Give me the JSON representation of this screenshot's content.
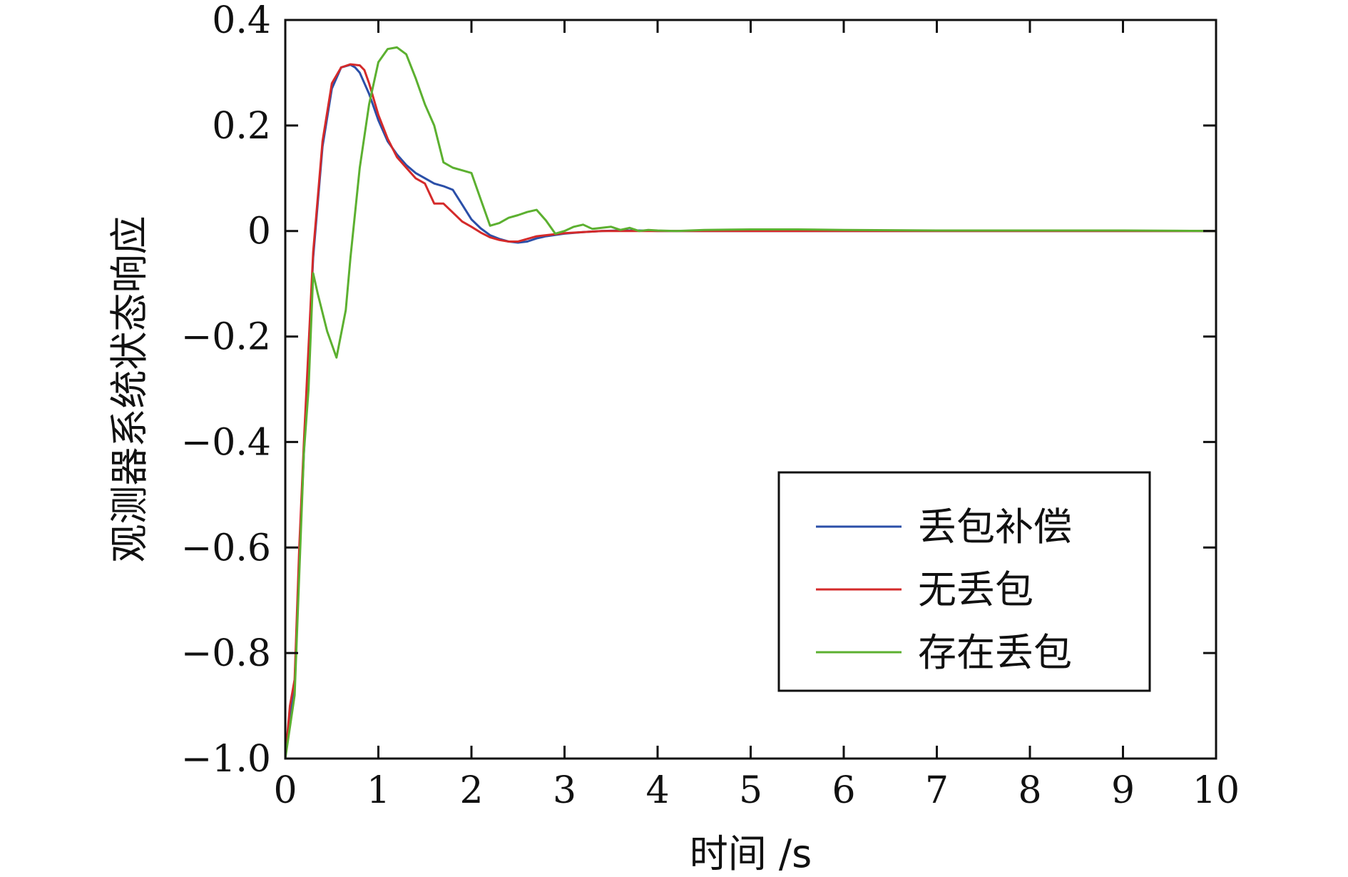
{
  "chart_data": {
    "type": "line",
    "title": "",
    "xlabel": "时间 /s",
    "ylabel": "观测器系统状态响应",
    "xlim": [
      0,
      10
    ],
    "ylim": [
      -1.0,
      0.4
    ],
    "x_ticks": [
      0,
      1,
      2,
      3,
      4,
      5,
      6,
      7,
      8,
      9,
      10
    ],
    "x_tick_labels": [
      "0",
      "1",
      "2",
      "3",
      "4",
      "5",
      "6",
      "7",
      "8",
      "9",
      "10"
    ],
    "y_ticks": [
      0.4,
      0.2,
      0,
      -0.2,
      -0.4,
      -0.6,
      -0.8,
      -1.0
    ],
    "y_tick_labels": [
      "0.4",
      "0.2",
      "0",
      "−0.2",
      "−0.4",
      "−0.6",
      "−0.8",
      "−1.0"
    ],
    "grid": false,
    "legend_position": "bottom-right",
    "series": [
      {
        "name": "丢包补偿",
        "color": "#2b4fa8",
        "x": [
          0,
          0.05,
          0.1,
          0.15,
          0.2,
          0.3,
          0.4,
          0.5,
          0.6,
          0.7,
          0.75,
          0.8,
          0.9,
          1.0,
          1.1,
          1.2,
          1.3,
          1.4,
          1.5,
          1.6,
          1.7,
          1.8,
          1.9,
          2.0,
          2.1,
          2.2,
          2.3,
          2.4,
          2.5,
          2.6,
          2.7,
          2.8,
          3.0,
          3.2,
          3.4,
          3.6,
          3.8,
          4.0,
          4.5,
          5.0,
          5.5,
          6.0,
          7.0,
          8.0,
          9.0,
          10.0
        ],
        "y": [
          -1.0,
          -0.92,
          -0.86,
          -0.62,
          -0.42,
          -0.05,
          0.16,
          0.27,
          0.31,
          0.315,
          0.31,
          0.3,
          0.26,
          0.21,
          0.17,
          0.145,
          0.125,
          0.11,
          0.1,
          0.09,
          0.085,
          0.078,
          0.05,
          0.022,
          0.005,
          -0.008,
          -0.015,
          -0.02,
          -0.022,
          -0.02,
          -0.014,
          -0.01,
          -0.005,
          -0.002,
          0.0,
          0.001,
          0.001,
          0.0,
          0.0,
          0.0,
          0.0,
          0.0,
          0.0,
          0.0,
          0.0,
          0.0
        ]
      },
      {
        "name": "无丢包",
        "color": "#d42a2a",
        "x": [
          0,
          0.05,
          0.1,
          0.15,
          0.2,
          0.3,
          0.4,
          0.5,
          0.6,
          0.7,
          0.8,
          0.85,
          0.9,
          1.0,
          1.1,
          1.2,
          1.3,
          1.4,
          1.5,
          1.6,
          1.7,
          1.8,
          1.9,
          2.0,
          2.1,
          2.2,
          2.3,
          2.4,
          2.5,
          2.6,
          2.7,
          2.8,
          3.0,
          3.2,
          3.4,
          3.6,
          3.8,
          4.0,
          4.5,
          5.0,
          5.5,
          6.0,
          7.0,
          8.0,
          9.0,
          10.0
        ],
        "y": [
          -1.0,
          -0.9,
          -0.85,
          -0.6,
          -0.4,
          -0.04,
          0.17,
          0.28,
          0.31,
          0.316,
          0.314,
          0.305,
          0.28,
          0.22,
          0.175,
          0.14,
          0.12,
          0.1,
          0.09,
          0.052,
          0.052,
          0.035,
          0.018,
          0.008,
          -0.003,
          -0.012,
          -0.017,
          -0.02,
          -0.02,
          -0.015,
          -0.01,
          -0.008,
          -0.004,
          -0.002,
          0.0,
          0.0,
          0.0,
          0.0,
          0.0,
          0.0,
          0.0,
          0.0,
          0.0,
          0.0,
          0.0,
          0.0
        ]
      },
      {
        "name": "存在丢包",
        "color": "#5cb030",
        "x": [
          0,
          0.1,
          0.2,
          0.25,
          0.3,
          0.35,
          0.45,
          0.55,
          0.65,
          0.7,
          0.8,
          0.9,
          1.0,
          1.1,
          1.2,
          1.3,
          1.4,
          1.5,
          1.6,
          1.7,
          1.8,
          1.9,
          2.0,
          2.1,
          2.2,
          2.3,
          2.4,
          2.5,
          2.6,
          2.7,
          2.8,
          2.9,
          3.0,
          3.1,
          3.2,
          3.3,
          3.4,
          3.5,
          3.6,
          3.7,
          3.8,
          3.9,
          4.0,
          4.2,
          4.5,
          5.0,
          5.5,
          6.0,
          7.0,
          8.0,
          9.0,
          10.0
        ],
        "y": [
          -1.0,
          -0.88,
          -0.42,
          -0.3,
          -0.08,
          -0.12,
          -0.19,
          -0.24,
          -0.15,
          -0.05,
          0.12,
          0.24,
          0.32,
          0.345,
          0.348,
          0.335,
          0.29,
          0.24,
          0.2,
          0.13,
          0.12,
          0.115,
          0.11,
          0.06,
          0.01,
          0.015,
          0.025,
          0.03,
          0.036,
          0.04,
          0.02,
          -0.005,
          0.0,
          0.008,
          0.012,
          0.004,
          0.006,
          0.008,
          0.002,
          0.006,
          0.0,
          0.002,
          0.001,
          0.0,
          0.002,
          0.003,
          0.003,
          0.002,
          0.001,
          0.001,
          0.001,
          0.0
        ]
      }
    ]
  }
}
